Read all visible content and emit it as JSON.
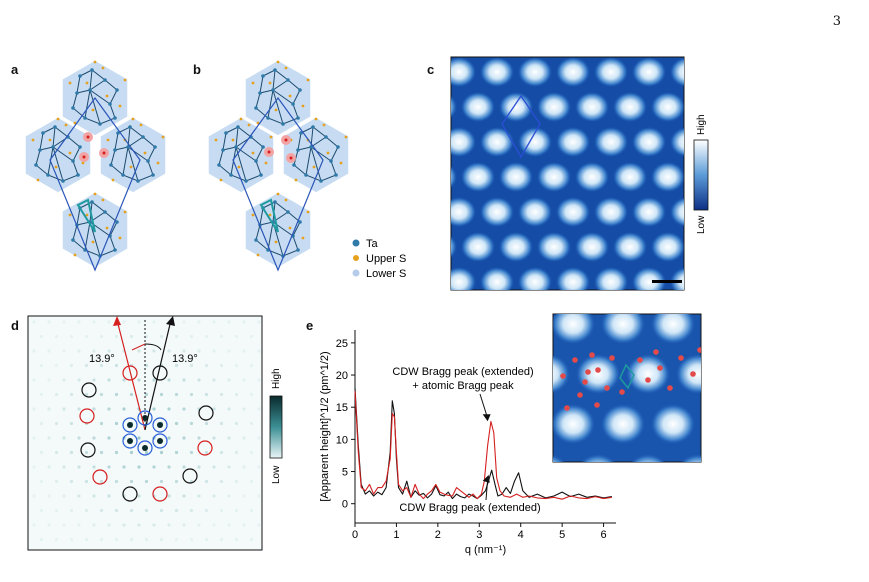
{
  "page": {
    "number": "3"
  },
  "panels": {
    "a": {
      "label": "a"
    },
    "b": {
      "label": "b"
    },
    "c": {
      "label": "c",
      "colorbar_high": "High",
      "colorbar_low": "Low"
    },
    "d": {
      "label": "d",
      "colorbar_high": "High",
      "colorbar_low": "Low",
      "angle_left": "13.9°",
      "angle_right": "13.9°"
    },
    "e": {
      "label": "e"
    }
  },
  "legend": [
    {
      "label": "Ta",
      "color": "#2f7aa8"
    },
    {
      "label": "Upper S",
      "color": "#e5a11d"
    },
    {
      "label": "Lower S",
      "color": "#b5cdea"
    }
  ],
  "colors": {
    "lattice_fill": "#c7dcf2",
    "bond": "#1c4a6e",
    "stm_dark": "#0d2f85",
    "red": "#d52020",
    "black": "#111111",
    "teal": "#1e9aa0"
  },
  "chart_data": {
    "type": "line",
    "xlabel": "q (nm⁻¹)",
    "ylabel": "[Apparent height]^1/2 (pm^1/2)",
    "xlim": [
      0,
      6.3
    ],
    "ylim": [
      -3,
      27
    ],
    "xticks": [
      0,
      1,
      2,
      3,
      4,
      5,
      6
    ],
    "yticks": [
      0,
      5,
      10,
      15,
      20,
      25
    ],
    "annotations": [
      {
        "text": "CDW Bragg peak (extended)",
        "text2": "+ atomic Bragg peak",
        "x": 3.25,
        "y": 12.5
      },
      {
        "text": "CDW Bragg peak (extended)",
        "x": 3.3,
        "y": 4.8
      }
    ],
    "series": [
      {
        "color": "#111111",
        "x": [
          0,
          0.08,
          0.15,
          0.25,
          0.35,
          0.45,
          0.55,
          0.65,
          0.75,
          0.85,
          0.9,
          0.95,
          1.0,
          1.05,
          1.15,
          1.25,
          1.35,
          1.45,
          1.55,
          1.65,
          1.75,
          1.85,
          1.95,
          2.05,
          2.15,
          2.25,
          2.35,
          2.45,
          2.55,
          2.65,
          2.75,
          2.85,
          2.95,
          3.05,
          3.15,
          3.22,
          3.3,
          3.38,
          3.45,
          3.55,
          3.65,
          3.75,
          3.85,
          3.95,
          4.05,
          4.2,
          4.4,
          4.6,
          4.8,
          5.0,
          5.2,
          5.4,
          5.6,
          5.8,
          6.0,
          6.2
        ],
        "y": [
          18,
          9,
          3,
          1.5,
          2,
          1.2,
          1.8,
          1.4,
          2.5,
          8,
          16,
          14,
          7,
          2.5,
          1.5,
          3.5,
          1,
          2,
          1.3,
          1.6,
          0.9,
          1.5,
          2.8,
          1.4,
          1.2,
          1.8,
          0.8,
          1.5,
          1.1,
          0.9,
          1.5,
          1.2,
          0.8,
          1.3,
          2,
          3.5,
          5.2,
          3,
          1.2,
          1.5,
          2.5,
          1.6,
          3.5,
          4.8,
          2,
          1,
          1.5,
          0.9,
          1.2,
          1.8,
          1.1,
          1.5,
          1,
          1.2,
          0.9,
          1.1
        ]
      },
      {
        "color": "#d52020",
        "x": [
          0,
          0.08,
          0.15,
          0.25,
          0.35,
          0.45,
          0.55,
          0.65,
          0.75,
          0.85,
          0.9,
          0.95,
          1.0,
          1.05,
          1.15,
          1.25,
          1.35,
          1.45,
          1.55,
          1.65,
          1.75,
          1.85,
          1.95,
          2.05,
          2.15,
          2.25,
          2.35,
          2.45,
          2.55,
          2.65,
          2.75,
          2.85,
          2.95,
          3.05,
          3.12,
          3.2,
          3.28,
          3.35,
          3.42,
          3.5,
          3.6,
          3.75,
          3.9,
          4.05,
          4.2,
          4.4,
          4.6,
          4.8,
          5.0,
          5.2,
          5.4,
          5.6,
          5.8,
          6.0,
          6.2
        ],
        "y": [
          17.5,
          8,
          2.5,
          2,
          3,
          1.5,
          2.5,
          2.5,
          3.5,
          7,
          14,
          13.5,
          8,
          3,
          2,
          2.5,
          1,
          3,
          1.5,
          0.8,
          1.5,
          2,
          3,
          1.8,
          1.5,
          1.3,
          1.2,
          2.5,
          2,
          1.5,
          1,
          1.5,
          0.8,
          1.5,
          3.5,
          9,
          12.8,
          11,
          4,
          2,
          1.2,
          1,
          1.5,
          1,
          1.2,
          0.9,
          0.8,
          1,
          0.7,
          1.2,
          0.9,
          0.8,
          1.1,
          0.8,
          1
        ]
      }
    ]
  }
}
